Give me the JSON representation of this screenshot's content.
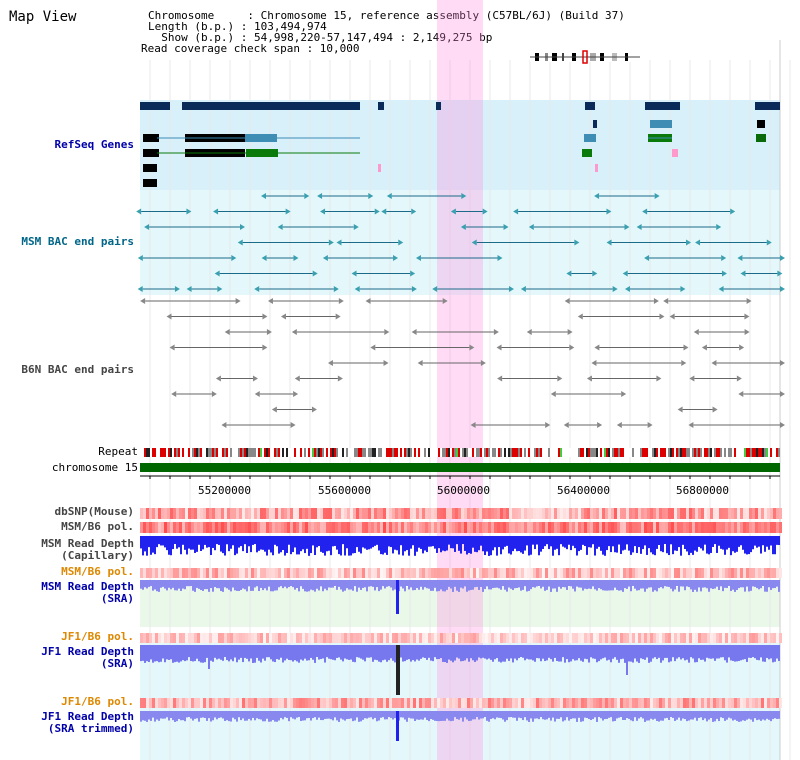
{
  "title": "Map View",
  "info": {
    "chromosome_line": "Chromosome     : Chromosome 15, reference assembly (C57BL/6J) (Build 37)",
    "length_line": "Length (b.p.) : 103,494,974",
    "show_line": "  Show (b.p.) : 54,998,220-57,147,494 : 2,149,275 bp",
    "span_line": "Read coverage check span : 10,000"
  },
  "tracks": {
    "refseq": "RefSeq Genes",
    "msm_bac": "MSM BAC end pairs",
    "b6n_bac": "B6N BAC end pairs",
    "repeat": "Repeat",
    "chromosome": "chromosome 15",
    "dbsnp": "dbSNP(Mouse)",
    "msm_b6_pol_1": "MSM/B6 pol.",
    "msm_depth_cap": "MSM Read Depth\n(Capillary)",
    "msm_b6_pol_2": "MSM/B6 pol.",
    "msm_depth_sra": "MSM Read Depth\n(SRA)",
    "jf1_b6_pol_1": "JF1/B6 pol.",
    "jf1_depth_sra": "JF1 Read Depth\n(SRA)",
    "jf1_b6_pol_2": "JF1/B6 pol.",
    "jf1_depth_trim": "JF1 Read Depth\n(SRA trimmed)"
  },
  "axis": {
    "ticks": [
      "55200000",
      "55600000",
      "56000000",
      "56400000",
      "56800000"
    ]
  },
  "colors": {
    "refseq_label": "#0000aa",
    "msm_label": "#006688",
    "b6n_label": "#444444",
    "orange_label": "#dd8800",
    "blue_label": "#0000aa",
    "highlight": "#ff88dd"
  }
}
